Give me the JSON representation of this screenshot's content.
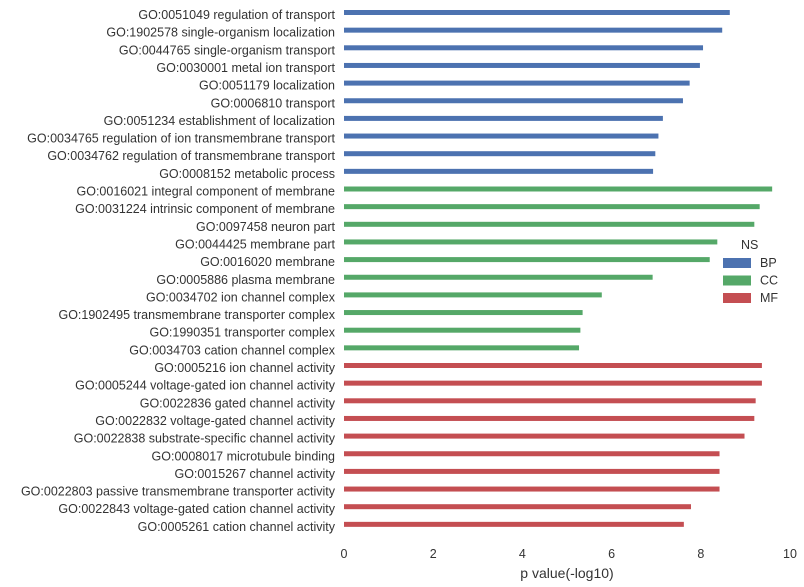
{
  "chart_data": {
    "type": "bar",
    "orientation": "horizontal",
    "xlabel": "p value(-log10)",
    "ylabel": "",
    "xlim": [
      0,
      10
    ],
    "xticks": [
      "0",
      "2",
      "4",
      "6",
      "8",
      "10"
    ],
    "grid": false,
    "legend": {
      "title": "NS",
      "placement": "right",
      "entries": [
        {
          "name": "BP",
          "color": "#4c72b0"
        },
        {
          "name": "CC",
          "color": "#55a868"
        },
        {
          "name": "MF",
          "color": "#c44e52"
        }
      ]
    },
    "categories": [
      {
        "label": "GO:0051049 regulation of transport",
        "value": 8.65,
        "group": "BP"
      },
      {
        "label": "GO:1902578 single-organism localization",
        "value": 8.48,
        "group": "BP"
      },
      {
        "label": "GO:0044765 single-organism transport",
        "value": 8.05,
        "group": "BP"
      },
      {
        "label": "GO:0030001 metal ion transport",
        "value": 7.98,
        "group": "BP"
      },
      {
        "label": "GO:0051179 localization",
        "value": 7.75,
        "group": "BP"
      },
      {
        "label": "GO:0006810 transport",
        "value": 7.6,
        "group": "BP"
      },
      {
        "label": "GO:0051234 establishment of localization",
        "value": 7.15,
        "group": "BP"
      },
      {
        "label": "GO:0034765 regulation of ion transmembrane transport",
        "value": 7.05,
        "group": "BP"
      },
      {
        "label": "GO:0034762 regulation of transmembrane transport",
        "value": 6.98,
        "group": "BP"
      },
      {
        "label": "GO:0008152 metabolic process",
        "value": 6.93,
        "group": "BP"
      },
      {
        "label": "GO:0016021 integral component of membrane",
        "value": 9.6,
        "group": "CC"
      },
      {
        "label": "GO:0031224 intrinsic component of membrane",
        "value": 9.32,
        "group": "CC"
      },
      {
        "label": "GO:0097458 neuron part",
        "value": 9.2,
        "group": "CC"
      },
      {
        "label": "GO:0044425 membrane part",
        "value": 8.37,
        "group": "CC"
      },
      {
        "label": "GO:0016020 membrane",
        "value": 8.2,
        "group": "CC"
      },
      {
        "label": "GO:0005886 plasma membrane",
        "value": 6.92,
        "group": "CC"
      },
      {
        "label": "GO:0034702 ion channel complex",
        "value": 5.78,
        "group": "CC"
      },
      {
        "label": "GO:1902495 transmembrane transporter complex",
        "value": 5.35,
        "group": "CC"
      },
      {
        "label": "GO:1990351 transporter complex",
        "value": 5.3,
        "group": "CC"
      },
      {
        "label": "GO:0034703 cation channel complex",
        "value": 5.27,
        "group": "CC"
      },
      {
        "label": "GO:0005216 ion channel activity",
        "value": 9.37,
        "group": "MF"
      },
      {
        "label": "GO:0005244 voltage-gated ion channel activity",
        "value": 9.37,
        "group": "MF"
      },
      {
        "label": "GO:0022836 gated channel activity",
        "value": 9.23,
        "group": "MF"
      },
      {
        "label": "GO:0022832 voltage-gated channel activity",
        "value": 9.2,
        "group": "MF"
      },
      {
        "label": "GO:0022838 substrate-specific channel activity",
        "value": 8.98,
        "group": "MF"
      },
      {
        "label": "GO:0008017 microtubule binding",
        "value": 8.42,
        "group": "MF"
      },
      {
        "label": "GO:0015267 channel activity",
        "value": 8.42,
        "group": "MF"
      },
      {
        "label": "GO:0022803 passive transmembrane transporter activity",
        "value": 8.42,
        "group": "MF"
      },
      {
        "label": "GO:0022843 voltage-gated cation channel activity",
        "value": 7.78,
        "group": "MF"
      },
      {
        "label": "GO:0005261 cation channel activity",
        "value": 7.62,
        "group": "MF"
      }
    ]
  }
}
